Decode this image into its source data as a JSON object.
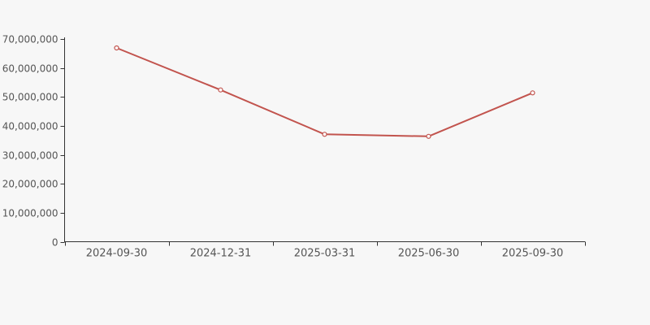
{
  "chart_data": {
    "type": "line",
    "title": "",
    "xlabel": "",
    "ylabel": "",
    "categories": [
      "2024-09-30",
      "2024-12-31",
      "2025-03-31",
      "2025-06-30",
      "2025-09-30"
    ],
    "series": [
      {
        "name": "value",
        "values": [
          66900000,
          52400000,
          37100000,
          36400000,
          51400000
        ]
      }
    ],
    "ylim": [
      0,
      70000000
    ],
    "y_tick_interval": 10000000,
    "y_tick_labels": [
      "0",
      "10,000,000",
      "20,000,000",
      "30,000,000",
      "40,000,000",
      "50,000,000",
      "60,000,000",
      "70,000,000"
    ],
    "grid": false,
    "legend_position": "none",
    "marker": "open-circle",
    "colors": {
      "line": "#c2544e",
      "marker_fill": "#ffffff",
      "axis": "#333333",
      "tick_label": "#555555",
      "background": "#f7f7f7"
    }
  }
}
